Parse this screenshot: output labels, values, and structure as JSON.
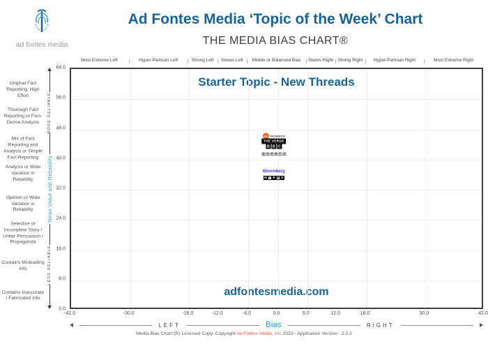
{
  "header": {
    "logo_text": "ad fontes media",
    "title": "Ad Fontes Media ‘Topic of the Week’ Chart",
    "subtitle": "THE MEDIA BIAS CHART®"
  },
  "colors": {
    "title_blue": "#17639c",
    "accent_blue": "#2d9fd8",
    "link_orange": "#ef6548",
    "grid": "#ededed",
    "border": "#3f3f3f"
  },
  "chart_data": {
    "type": "scatter",
    "title": "Starter Topic - New Threads",
    "watermark": "adfontesmedia.com",
    "xlabel": "Bias",
    "ylabel": "News Value and Reliability",
    "x_axis_left_label": "LEFT",
    "x_axis_right_label": "RIGHT",
    "y_axis_top_label": "MORE RELIABLE",
    "y_axis_bottom_label": "LESS RELIABLE",
    "xlim": [
      -42,
      42
    ],
    "ylim": [
      0,
      64
    ],
    "x_ticks": [
      -42,
      -30,
      -18,
      -12,
      -6,
      0,
      6,
      12,
      18,
      30,
      42
    ],
    "y_ticks": [
      64,
      56,
      48,
      40,
      32,
      24,
      16,
      8,
      0
    ],
    "x_gridlines": [
      -30,
      -18,
      -6,
      0,
      6,
      18,
      30
    ],
    "y_gridlines": [
      8,
      16,
      24,
      32,
      40,
      48,
      56
    ],
    "bias_boundaries": [
      -30,
      -18,
      -12,
      -6,
      6,
      12,
      18,
      30
    ],
    "bias_categories": [
      {
        "label": "Most Extreme Left",
        "center": -36
      },
      {
        "label": "Hyper-Partisan Left",
        "center": -24
      },
      {
        "label": "Strong Left",
        "center": -15
      },
      {
        "label": "Skews Left",
        "center": -9
      },
      {
        "label": "Middle or Balanced Bias",
        "center": 0
      },
      {
        "label": "Skews Right",
        "center": 9
      },
      {
        "label": "Strong Right",
        "center": 15
      },
      {
        "label": "Hyper-Partisan Right",
        "center": 24
      },
      {
        "label": "Most Extreme Right",
        "center": 36
      }
    ],
    "reliability_categories": [
      {
        "label": "Original Fact Reporting, High Effort",
        "center": 58
      },
      {
        "label": "Thorough Fact Reporting or Fact-Dense Analysis",
        "center": 51
      },
      {
        "label": "Mix of Fact Reporting and Analysis or Simple Fact Reporting",
        "center": 42.5
      },
      {
        "label": "Analysis or Wide Variation in Reliability",
        "center": 35.8
      },
      {
        "label": "Opinion or Wide Variation in Reliability",
        "center": 27.8
      },
      {
        "label": "Selective or Incomplete Story / Unfair Persuasion / Propaganda",
        "center": 20
      },
      {
        "label": "Contains Misleading Info",
        "center": 11.3
      },
      {
        "label": "Contains Inaccurate / Fabricated Info",
        "center": 3.4
      }
    ],
    "outlets": [
      {
        "name": "Ars Technica",
        "style": "ars",
        "bias": -0.8,
        "reliability": 46.3,
        "badge": "ars",
        "text": "TECHNICA",
        "colors": {
          "badge_bg": "#f06321",
          "badge_fg": "#ffffff",
          "fg": "#3a2a20"
        }
      },
      {
        "name": "The Verge",
        "style": "chip",
        "bias": -0.8,
        "reliability": 44.9,
        "text": "THE VERGE",
        "colors": {
          "bg": "#101010",
          "fg": "#ffffff"
        }
      },
      {
        "name": "BBC",
        "style": "blocks",
        "bias": -0.8,
        "reliability": 43.4,
        "letters": [
          "B",
          "B",
          "C"
        ],
        "colors": {
          "bg": "#000000",
          "fg": "#ffffff"
        }
      },
      {
        "name": "Quartz",
        "style": "boxes",
        "bias": -0.8,
        "reliability": 41.5,
        "letters": [
          "Q",
          "U",
          "A",
          "R",
          "T",
          "Z"
        ],
        "colors": {
          "bg": "#e4e4e4",
          "fg": "#1a1a1a",
          "border": "#8a8a8a"
        }
      },
      {
        "name": "Bloomberg",
        "style": "text",
        "bias": -0.8,
        "reliability": 36.9,
        "text": "Bloomberg",
        "colors": {
          "fg": "#4b3be8"
        }
      },
      {
        "name": "Wired",
        "style": "altblocks",
        "bias": -0.8,
        "reliability": 35.2,
        "letters": [
          "W",
          "I",
          "R",
          "E",
          "D"
        ],
        "colors": {
          "bg": "#000000",
          "fg": "#ffffff"
        }
      }
    ]
  },
  "footer": {
    "text_before": "Media Bias Chart (R) Licensed Copy. Copyright ",
    "link_text": "Ad Fontes Media, Inc",
    "text_after": " 2023  - Application Version : 2.0.2"
  }
}
